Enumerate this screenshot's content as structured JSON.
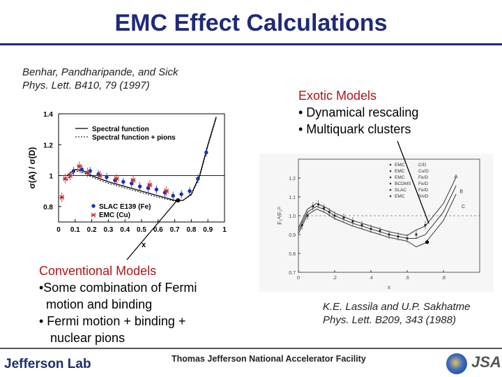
{
  "title": "EMC Effect Calculations",
  "left_ref": {
    "line1": "Benhar, Pandharipande, and Sick",
    "line2": "Phys. Lett. B410, 79 (1997)"
  },
  "right_ref": {
    "line1": "K.E. Lassila and U.P. Sakhatme",
    "line2": "Phys. Lett. B209, 343 (1988)"
  },
  "conventional": {
    "heading": "Conventional Models",
    "items": [
      "•Some combination of Fermi",
      "motion and binding",
      "• Fermi motion + binding +",
      "nuclear pions"
    ]
  },
  "exotic": {
    "heading": "Exotic Models",
    "items": [
      "• Dynamical rescaling",
      "• Multiquark clusters"
    ]
  },
  "footer": {
    "logo": "Jefferson Lab",
    "facility": "Thomas Jefferson National Accelerator Facility",
    "jsa": "JSA"
  },
  "chart_data": [
    {
      "type": "scatter",
      "xlabel": "x",
      "ylabel": "σ(A) / σ(D)",
      "xlim": [
        0,
        1
      ],
      "ylim": [
        0.7,
        1.4
      ],
      "xticks": [
        "0",
        "0.1",
        "0.2",
        "0.3",
        "0.4",
        "0.5",
        "0.6",
        "0.7",
        "0.8",
        "0.9",
        "1"
      ],
      "yticks": [
        "0.8",
        "1",
        "1.2",
        "1.4"
      ],
      "legend_lines": [
        "Spectral function",
        "Spectral function + pions"
      ],
      "legend_points": [
        "SLAC E139 (Fe)",
        "EMC (Cu)"
      ],
      "series": [
        {
          "name": "SLAC E139 (Fe)",
          "marker": "dot",
          "x": [
            0.09,
            0.14,
            0.19,
            0.24,
            0.29,
            0.34,
            0.39,
            0.44,
            0.49,
            0.54,
            0.59,
            0.64,
            0.69,
            0.74,
            0.79,
            0.84,
            0.89
          ],
          "y": [
            1.03,
            1.04,
            1.03,
            1.01,
            0.99,
            0.97,
            0.96,
            0.95,
            0.93,
            0.92,
            0.91,
            0.89,
            0.87,
            0.88,
            0.9,
            0.98,
            1.15
          ]
        },
        {
          "name": "EMC (Cu)",
          "marker": "star",
          "x": [
            0.02,
            0.04,
            0.07,
            0.125,
            0.175,
            0.25,
            0.35,
            0.45,
            0.55,
            0.65
          ],
          "y": [
            0.86,
            0.98,
            1.0,
            1.06,
            1.02,
            1.0,
            0.98,
            0.97,
            0.94,
            0.9
          ]
        },
        {
          "name": "Spectral function",
          "style": "solid",
          "x": [
            0.05,
            0.1,
            0.15,
            0.2,
            0.3,
            0.4,
            0.5,
            0.6,
            0.7,
            0.75,
            0.8,
            0.85,
            0.9,
            0.95
          ],
          "y": [
            1.0,
            1.04,
            1.03,
            1.0,
            0.96,
            0.93,
            0.9,
            0.87,
            0.84,
            0.84,
            0.88,
            1.0,
            1.2,
            1.38
          ]
        },
        {
          "name": "Spectral function + pions",
          "style": "dotted",
          "x": [
            0.05,
            0.1,
            0.15,
            0.2,
            0.3,
            0.4,
            0.5,
            0.6,
            0.7,
            0.75,
            0.8,
            0.85,
            0.9,
            0.95
          ],
          "y": [
            0.97,
            1.03,
            1.02,
            0.99,
            0.95,
            0.92,
            0.89,
            0.86,
            0.835,
            0.84,
            0.875,
            0.99,
            1.19,
            1.37
          ]
        }
      ]
    },
    {
      "type": "scatter",
      "xlabel": "x",
      "ylabel": "F₂ᴬ/F₂ᴰ",
      "xlim": [
        0,
        1.0
      ],
      "ylim": [
        0.7,
        1.3
      ],
      "xticks": [
        "0",
        ".2",
        ".4",
        ".6",
        ".8"
      ],
      "yticks": [
        "0.7",
        "0.8",
        "0.9",
        "1.0",
        "1.1",
        "1.2"
      ],
      "legend": [
        {
          "label": "EMC",
          "ratio": "C/D"
        },
        {
          "label": "EMC",
          "ratio": "Cu/D"
        },
        {
          "label": "EMC",
          "ratio": "Fe/D"
        },
        {
          "label": "BCDMS",
          "ratio": "Fe/D"
        },
        {
          "label": "SLAC",
          "ratio": "Fe/D"
        },
        {
          "label": "EMC",
          "ratio": "Sn/D"
        }
      ],
      "curve_labels": [
        "A",
        "B",
        "C"
      ],
      "series": [
        {
          "name": "data",
          "x": [
            0.02,
            0.05,
            0.08,
            0.11,
            0.14,
            0.17,
            0.2,
            0.25,
            0.3,
            0.35,
            0.4,
            0.45,
            0.5,
            0.55,
            0.6,
            0.65,
            0.7
          ],
          "y": [
            0.95,
            1.0,
            1.05,
            1.06,
            1.04,
            1.02,
            1.0,
            0.99,
            0.97,
            0.95,
            0.93,
            0.92,
            0.9,
            0.89,
            0.88,
            0.9,
            0.95
          ]
        }
      ]
    }
  ]
}
